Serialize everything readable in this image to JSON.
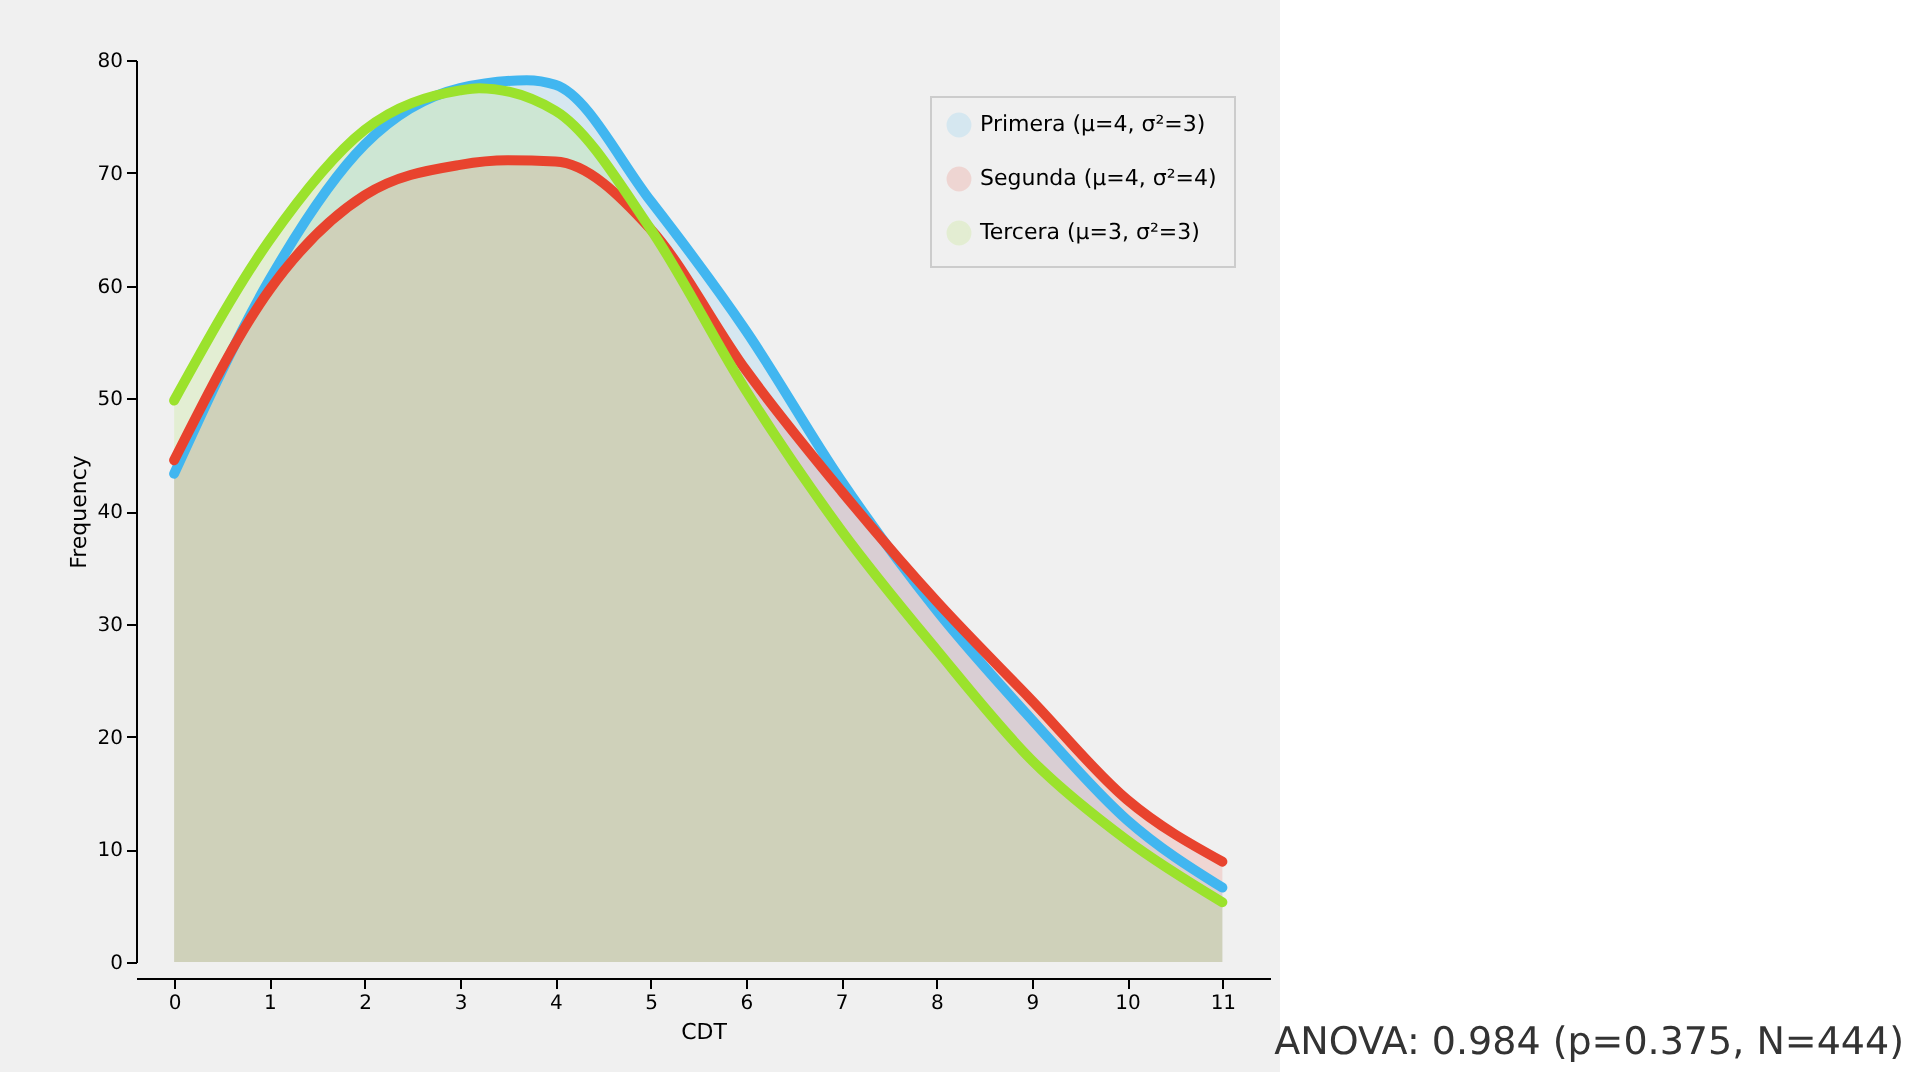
{
  "chart_data": {
    "type": "area",
    "xlabel": "CDT",
    "ylabel": "Frequency",
    "xlim": [
      -0.4,
      11.5
    ],
    "ylim": [
      0,
      80
    ],
    "xticks": [
      0,
      1,
      2,
      3,
      4,
      5,
      6,
      7,
      8,
      9,
      10,
      11
    ],
    "yticks": [
      0,
      10,
      20,
      30,
      40,
      50,
      60,
      70,
      80
    ],
    "grid": false,
    "legend": "top right",
    "line_style": "solid",
    "series": [
      {
        "name": "Primera (μ=4, σ²=3)",
        "color": "#41b6f0",
        "x": [
          0,
          1,
          2,
          3,
          3.7,
          4,
          5,
          6,
          7,
          8,
          9,
          10,
          11
        ],
        "values": [
          43.3,
          60.5,
          72.5,
          77.5,
          78.2,
          77.8,
          67.5,
          56,
          42.7,
          31.2,
          21.5,
          12.6,
          6.6
        ]
      },
      {
        "name": "Segunda (μ=4, σ²=4)",
        "color": "#e8432e",
        "x": [
          0,
          1,
          2,
          3,
          3.5,
          4,
          5,
          6,
          7,
          8,
          9,
          10,
          11
        ],
        "values": [
          44.5,
          59.6,
          68,
          70.7,
          71.1,
          71,
          65,
          52.5,
          41.8,
          32,
          23.2,
          14.4,
          8.9
        ]
      },
      {
        "name": "Tercera (μ=3, σ²=3)",
        "color": "#9be22c",
        "x": [
          0,
          1,
          2,
          3,
          3.2,
          4,
          5,
          6,
          7,
          8,
          9,
          10,
          11
        ],
        "values": [
          49.8,
          64,
          73.8,
          77.3,
          77.5,
          75.5,
          65,
          50.7,
          38.3,
          27.7,
          17.9,
          10.8,
          5.3
        ]
      }
    ],
    "annotations": [
      "ANOVA: 0.984 (p=0.375, N=444)"
    ]
  }
}
